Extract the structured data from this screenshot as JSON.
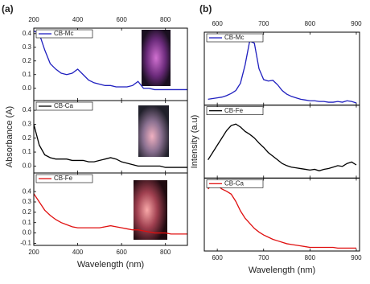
{
  "chart_data": [
    {
      "type": "line",
      "panel": "(a)",
      "ylabel": "Absorbance (A)",
      "x": [
        200,
        225,
        250,
        275,
        300,
        325,
        350,
        375,
        400,
        425,
        450,
        475,
        500,
        525,
        550,
        575,
        600,
        625,
        650,
        675,
        700,
        725,
        750,
        775,
        800,
        825,
        850,
        875,
        900
      ],
      "series": [
        {
          "name": "CB-Mc",
          "color": "#1f1fbf",
          "values": [
            0.42,
            0.4,
            0.28,
            0.18,
            0.14,
            0.11,
            0.1,
            0.11,
            0.14,
            0.1,
            0.06,
            0.04,
            0.03,
            0.02,
            0.02,
            0.01,
            0.01,
            0.01,
            0.02,
            0.05,
            0.0,
            0.0,
            -0.01,
            -0.01,
            -0.01,
            -0.01,
            -0.01,
            -0.01,
            -0.01
          ]
        }
      ],
      "xlim": [
        200,
        900
      ],
      "xticks": [
        200,
        400,
        600,
        800
      ],
      "ylim": [
        -0.09,
        0.44
      ],
      "yticks": [
        {
          "value": 0,
          "label": "0.0"
        },
        0.1,
        0.2,
        0.3,
        0.4
      ]
    },
    {
      "type": "line",
      "x": [
        200,
        225,
        250,
        275,
        300,
        325,
        350,
        375,
        400,
        425,
        450,
        475,
        500,
        525,
        550,
        575,
        600,
        625,
        650,
        675,
        700,
        725,
        750,
        775,
        800,
        825,
        850,
        875,
        900
      ],
      "series": [
        {
          "name": "CB-Ca",
          "color": "#000000",
          "values": [
            0.3,
            0.15,
            0.08,
            0.06,
            0.05,
            0.05,
            0.05,
            0.04,
            0.04,
            0.04,
            0.03,
            0.03,
            0.04,
            0.05,
            0.06,
            0.05,
            0.03,
            0.02,
            0.01,
            0.0,
            0.0,
            0.0,
            0.0,
            0.0,
            -0.01,
            -0.01,
            -0.01,
            -0.01,
            -0.01
          ]
        }
      ],
      "xlim": [
        200,
        900
      ],
      "xticks": [
        200,
        400,
        600,
        800
      ],
      "ylim": [
        -0.05,
        0.47
      ],
      "yticks": [
        {
          "value": 0,
          "label": "0.0"
        },
        0.1,
        0.2,
        0.3,
        0.4
      ]
    },
    {
      "type": "line",
      "xlabel": "Wavelength (nm)",
      "x": [
        200,
        225,
        250,
        275,
        300,
        325,
        350,
        375,
        400,
        425,
        450,
        475,
        500,
        525,
        550,
        575,
        600,
        625,
        650,
        675,
        700,
        725,
        750,
        775,
        800,
        825,
        850,
        875,
        900
      ],
      "series": [
        {
          "name": "CB-Fe",
          "color": "#e01010",
          "values": [
            0.38,
            0.3,
            0.22,
            0.17,
            0.13,
            0.1,
            0.08,
            0.06,
            0.05,
            0.05,
            0.05,
            0.05,
            0.05,
            0.06,
            0.07,
            0.06,
            0.05,
            0.04,
            0.03,
            0.03,
            0.02,
            0.01,
            0.0,
            0.0,
            0.0,
            -0.01,
            -0.01,
            -0.01,
            -0.01
          ]
        }
      ],
      "xlim": [
        200,
        900
      ],
      "xticks": [
        200,
        400,
        600,
        800
      ],
      "ylim": [
        -0.12,
        0.58
      ],
      "yticks": [
        -0.1,
        {
          "value": 0,
          "label": "0.0"
        },
        0.1,
        0.2,
        0.3,
        0.4
      ]
    },
    {
      "type": "line",
      "panel": "(b)",
      "ylabel": "Intensity (a.u)",
      "x": [
        580,
        590,
        600,
        610,
        620,
        630,
        640,
        650,
        660,
        670,
        680,
        690,
        700,
        710,
        720,
        730,
        740,
        750,
        760,
        770,
        780,
        790,
        800,
        810,
        820,
        830,
        840,
        850,
        860,
        870,
        880,
        890,
        900
      ],
      "series": [
        {
          "name": "CB-Mc",
          "color": "#1f1fbf",
          "values": [
            0.08,
            0.09,
            0.1,
            0.11,
            0.13,
            0.16,
            0.2,
            0.3,
            0.55,
            0.88,
            0.85,
            0.5,
            0.35,
            0.33,
            0.34,
            0.28,
            0.2,
            0.15,
            0.12,
            0.1,
            0.08,
            0.07,
            0.06,
            0.06,
            0.05,
            0.05,
            0.04,
            0.04,
            0.05,
            0.04,
            0.06,
            0.05,
            0.03
          ]
        }
      ],
      "xlim": [
        572,
        907
      ],
      "xticks": [
        600,
        700,
        800,
        900
      ],
      "ylim": [
        0,
        1
      ]
    },
    {
      "type": "line",
      "x": [
        580,
        590,
        600,
        610,
        620,
        630,
        640,
        650,
        660,
        670,
        680,
        690,
        700,
        710,
        720,
        730,
        740,
        750,
        760,
        770,
        780,
        790,
        800,
        810,
        820,
        830,
        840,
        850,
        860,
        870,
        880,
        890,
        900
      ],
      "series": [
        {
          "name": "CB-Fe",
          "color": "#000000",
          "values": [
            0.25,
            0.35,
            0.45,
            0.55,
            0.65,
            0.72,
            0.74,
            0.7,
            0.64,
            0.6,
            0.55,
            0.48,
            0.42,
            0.35,
            0.3,
            0.25,
            0.2,
            0.17,
            0.15,
            0.14,
            0.13,
            0.12,
            0.11,
            0.12,
            0.1,
            0.12,
            0.13,
            0.15,
            0.17,
            0.16,
            0.2,
            0.22,
            0.18
          ]
        }
      ],
      "xlim": [
        572,
        907
      ],
      "xticks": [
        600,
        700,
        800,
        900
      ],
      "ylim": [
        0,
        1
      ]
    },
    {
      "type": "line",
      "xlabel": "Wavelength (nm)",
      "x": [
        580,
        590,
        600,
        610,
        620,
        630,
        640,
        650,
        660,
        670,
        680,
        690,
        700,
        710,
        720,
        730,
        740,
        750,
        760,
        770,
        780,
        790,
        800,
        810,
        820,
        830,
        840,
        850,
        860,
        870,
        880,
        890,
        900
      ],
      "series": [
        {
          "name": "CB-Ca",
          "color": "#e01010",
          "values": [
            0.85,
            0.92,
            0.9,
            0.85,
            0.82,
            0.78,
            0.68,
            0.55,
            0.45,
            0.38,
            0.31,
            0.26,
            0.22,
            0.19,
            0.16,
            0.14,
            0.12,
            0.1,
            0.09,
            0.08,
            0.07,
            0.06,
            0.05,
            0.05,
            0.05,
            0.05,
            0.05,
            0.05,
            0.04,
            0.04,
            0.04,
            0.04,
            0.04
          ]
        }
      ],
      "xlim": [
        572,
        907
      ],
      "xticks": [
        600,
        700,
        800,
        900
      ],
      "ylim": [
        0,
        1
      ]
    }
  ]
}
